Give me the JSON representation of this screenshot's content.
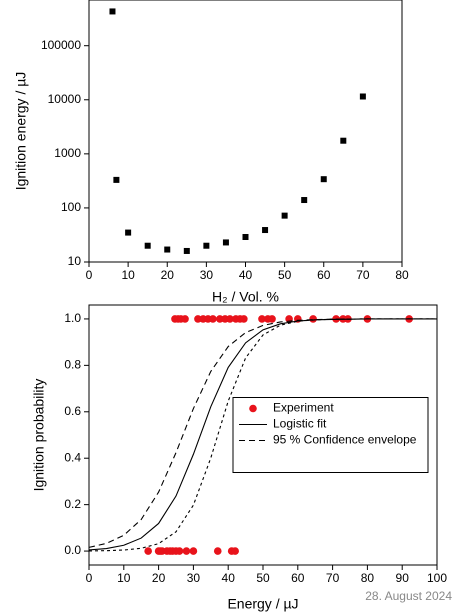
{
  "chart_data": [
    {
      "type": "scatter",
      "xlabel": "H₂ / Vol. %",
      "ylabel": "Ignition energy / µJ",
      "ylog": true,
      "xlim": [
        0,
        80
      ],
      "xticks": [
        0,
        10,
        20,
        30,
        40,
        50,
        60,
        70,
        80
      ],
      "ylim": [
        10,
        700000
      ],
      "yticks": [
        10,
        100,
        1000,
        10000,
        100000
      ],
      "series": [
        {
          "color": "#000000",
          "marker": "square",
          "x": [
            6,
            7,
            10,
            15,
            20,
            25,
            30,
            35,
            40,
            45,
            50,
            55,
            60,
            65,
            70
          ],
          "values": [
            430000,
            330,
            35,
            20,
            17,
            16,
            20,
            23,
            29,
            39,
            72,
            140,
            340,
            1750,
            11500
          ]
        }
      ]
    },
    {
      "type": "scatter",
      "xlabel": "Energy / µJ",
      "ylabel": "Ignition probability",
      "legend": "center right",
      "xlim": [
        0,
        100
      ],
      "xticks": [
        0,
        10,
        20,
        30,
        40,
        50,
        60,
        70,
        80,
        90,
        100
      ],
      "ylim": [
        -0.06,
        1.06
      ],
      "yticks": [
        {
          "value": 0,
          "label": "0.0"
        },
        {
          "value": 0.2,
          "label": "0.2"
        },
        {
          "value": 0.4,
          "label": "0.4"
        },
        {
          "value": 0.6,
          "label": "0.6"
        },
        {
          "value": 0.8,
          "label": "0.8"
        },
        {
          "value": 1,
          "label": "1.0"
        }
      ],
      "x": [
        0,
        5,
        10,
        15,
        20,
        25,
        30,
        35,
        40,
        45,
        50,
        55,
        60,
        65,
        70,
        80,
        90,
        100
      ],
      "series": [
        {
          "name": "Experiment",
          "color": "#e8131b",
          "marker": "circle",
          "x": [
            24.7,
            25.6,
            26.4,
            27.6,
            31.3,
            32.8,
            34.2,
            35.6,
            37.6,
            39.1,
            40.5,
            42.2,
            43.4,
            44.5,
            49.7,
            51.4,
            52.6,
            57.5,
            60,
            64.4,
            71,
            73,
            74.4,
            80,
            92,
            17,
            20,
            20.5,
            21,
            22.4,
            23.3,
            24,
            25,
            26,
            28,
            30,
            37,
            41,
            42
          ],
          "values": [
            1,
            1,
            1,
            1,
            1,
            1,
            1,
            1,
            1,
            1,
            1,
            1,
            1,
            1,
            1,
            1,
            1,
            1,
            1,
            1,
            1,
            1,
            1,
            1,
            1,
            0,
            0,
            0,
            0,
            0,
            0,
            0,
            0,
            0,
            0,
            0,
            0,
            0,
            0
          ]
        },
        {
          "name": "Logistic fit",
          "color": "#000000",
          "linestyle": "solid",
          "values": [
            0.0048,
            0.011,
            0.025,
            0.056,
            0.119,
            0.237,
            0.417,
            0.622,
            0.791,
            0.897,
            0.953,
            0.979,
            0.991,
            0.996,
            0.998,
            1,
            1,
            1
          ]
        },
        {
          "name": "95 % Confidence envelope",
          "color": "#000000",
          "linestyle": "dashed",
          "values": [
            0.016,
            0.033,
            0.068,
            0.136,
            0.254,
            0.424,
            0.614,
            0.774,
            0.881,
            0.941,
            0.972,
            0.987,
            0.994,
            0.997,
            0.999,
            1,
            1,
            1
          ]
        },
        {
          "color": "#000000",
          "linestyle": "dotted",
          "values": [
            0.0006,
            0.0017,
            0.0045,
            0.012,
            0.032,
            0.083,
            0.198,
            0.401,
            0.646,
            0.832,
            0.931,
            0.973,
            0.99,
            0.996,
            0.999,
            1,
            1,
            1
          ]
        }
      ]
    }
  ],
  "footer": "28. August 2024"
}
